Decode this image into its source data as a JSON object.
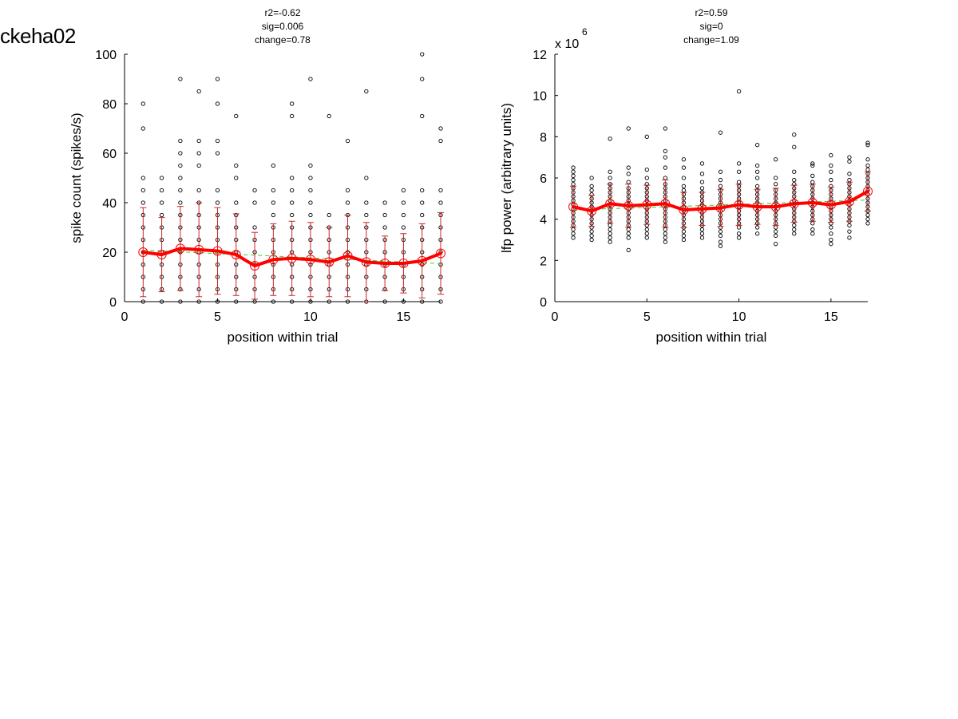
{
  "figure": {
    "title": "ckeha02"
  },
  "chart_data": [
    {
      "type": "scatter",
      "stats": [
        "r2=-0.62",
        "sig=0.006",
        "change=0.78"
      ],
      "xlabel": "position within trial",
      "ylabel": "spike count (spikes/s)",
      "xlim": [
        0,
        17
      ],
      "ylim": [
        0,
        100
      ],
      "xticks": [
        0,
        5,
        10,
        15
      ],
      "yticks": [
        0,
        20,
        40,
        60,
        80,
        100
      ],
      "tick_exponent": "",
      "colors": {
        "points": "#000000",
        "mean_line": "#ff0000",
        "errorbar": "#cc2222",
        "fit": "#33cc33"
      },
      "x": [
        1,
        2,
        3,
        4,
        5,
        6,
        7,
        8,
        9,
        10,
        11,
        12,
        13,
        14,
        15,
        16,
        17
      ],
      "mean": [
        20,
        19,
        21.5,
        21,
        20.5,
        19,
        14.5,
        17,
        17.5,
        17,
        16,
        18.5,
        16,
        15.5,
        15.5,
        16.5,
        19.5
      ],
      "std": [
        18,
        15,
        17,
        19,
        17.5,
        16.5,
        13.5,
        14.5,
        15,
        15,
        14,
        16.5,
        16,
        11,
        12,
        15,
        16.5
      ],
      "fit": [
        20.8,
        20.5,
        20.1,
        19.8,
        19.4,
        19.1,
        18.8,
        18.4,
        18.1,
        17.7,
        17.4,
        17.1,
        16.7,
        16.4,
        16,
        15.7,
        15.4
      ],
      "points": [
        [
          0,
          5,
          10,
          15,
          20,
          25,
          30,
          35,
          40,
          45,
          50,
          70,
          80
        ],
        [
          0,
          5,
          10,
          15,
          20,
          25,
          30,
          35,
          40,
          45,
          50
        ],
        [
          0,
          5,
          10,
          15,
          20,
          25,
          30,
          35,
          40,
          45,
          50,
          55,
          60,
          65,
          90
        ],
        [
          0,
          5,
          10,
          15,
          20,
          25,
          30,
          35,
          40,
          45,
          55,
          60,
          65,
          85
        ],
        [
          0,
          5,
          10,
          15,
          20,
          25,
          30,
          35,
          40,
          45,
          60,
          65,
          80,
          90
        ],
        [
          0,
          5,
          10,
          15,
          20,
          25,
          30,
          35,
          40,
          50,
          55,
          75
        ],
        [
          0,
          5,
          10,
          15,
          20,
          25,
          30,
          40,
          45
        ],
        [
          0,
          5,
          10,
          15,
          20,
          25,
          30,
          35,
          40,
          45,
          55
        ],
        [
          0,
          5,
          10,
          15,
          20,
          25,
          30,
          35,
          40,
          45,
          50,
          75,
          80
        ],
        [
          0,
          5,
          10,
          15,
          20,
          25,
          30,
          35,
          40,
          45,
          50,
          55,
          90
        ],
        [
          0,
          5,
          10,
          15,
          20,
          25,
          30,
          35,
          75
        ],
        [
          0,
          5,
          10,
          15,
          20,
          25,
          30,
          35,
          40,
          45,
          65
        ],
        [
          0,
          5,
          10,
          15,
          20,
          25,
          30,
          35,
          40,
          50,
          85
        ],
        [
          0,
          5,
          10,
          15,
          20,
          25,
          30,
          35,
          40
        ],
        [
          0,
          5,
          10,
          15,
          20,
          25,
          30,
          35,
          40,
          45
        ],
        [
          0,
          5,
          10,
          15,
          20,
          25,
          30,
          35,
          40,
          45,
          75,
          90,
          100
        ],
        [
          0,
          5,
          10,
          15,
          20,
          25,
          30,
          35,
          40,
          45,
          65,
          70
        ]
      ]
    },
    {
      "type": "scatter",
      "stats": [
        "r2=0.59",
        "sig=0",
        "change=1.09"
      ],
      "xlabel": "position within trial",
      "ylabel": "lfp power (arbitrary units)",
      "xlim": [
        0,
        17
      ],
      "ylim": [
        0,
        12
      ],
      "xticks": [
        0,
        5,
        10,
        15
      ],
      "yticks": [
        0,
        2,
        4,
        6,
        8,
        10,
        12
      ],
      "tick_exponent": "x 10",
      "tick_exponent_power": "6",
      "colors": {
        "points": "#000000",
        "mean_line": "#ff0000",
        "errorbar": "#cc2222",
        "fit": "#33cc33"
      },
      "x": [
        1,
        2,
        3,
        4,
        5,
        6,
        7,
        8,
        9,
        10,
        11,
        12,
        13,
        14,
        15,
        16,
        17
      ],
      "mean": [
        4.6,
        4.4,
        4.75,
        4.65,
        4.7,
        4.75,
        4.45,
        4.5,
        4.55,
        4.7,
        4.6,
        4.6,
        4.75,
        4.8,
        4.7,
        4.85,
        5.35
      ],
      "std": [
        1.0,
        0.75,
        0.95,
        1.05,
        0.95,
        1.15,
        0.85,
        0.8,
        0.9,
        1.0,
        0.85,
        0.9,
        0.9,
        0.9,
        0.85,
        0.95,
        0.95
      ],
      "fit": [
        4.45,
        4.48,
        4.51,
        4.54,
        4.57,
        4.6,
        4.63,
        4.66,
        4.69,
        4.72,
        4.75,
        4.78,
        4.81,
        4.84,
        4.87,
        4.9,
        4.93
      ],
      "points": [
        [
          3.1,
          3.3,
          3.5,
          3.7,
          3.9,
          4.1,
          4.3,
          4.5,
          4.7,
          4.9,
          5.1,
          5.3,
          5.5,
          5.7,
          5.9,
          6.1,
          6.3,
          6.5
        ],
        [
          3.0,
          3.2,
          3.4,
          3.6,
          3.8,
          4.0,
          4.2,
          4.4,
          4.6,
          4.8,
          5.0,
          5.2,
          5.4,
          5.6,
          6.0
        ],
        [
          2.9,
          3.1,
          3.3,
          3.5,
          3.7,
          3.9,
          4.1,
          4.3,
          4.5,
          4.7,
          4.9,
          5.1,
          5.3,
          5.5,
          5.7,
          6.0,
          6.3,
          7.9
        ],
        [
          2.5,
          3.1,
          3.3,
          3.5,
          3.7,
          3.9,
          4.1,
          4.3,
          4.5,
          4.7,
          4.9,
          5.1,
          5.3,
          5.5,
          5.8,
          6.2,
          6.5,
          8.4
        ],
        [
          3.1,
          3.3,
          3.5,
          3.7,
          3.9,
          4.1,
          4.3,
          4.5,
          4.7,
          4.9,
          5.1,
          5.3,
          5.5,
          5.7,
          6.0,
          6.4,
          8.0
        ],
        [
          2.9,
          3.1,
          3.3,
          3.5,
          3.7,
          3.9,
          4.1,
          4.3,
          4.5,
          4.7,
          4.9,
          5.1,
          5.3,
          5.5,
          5.7,
          6.0,
          6.5,
          7.0,
          7.3,
          8.4
        ],
        [
          3.0,
          3.2,
          3.4,
          3.6,
          3.8,
          4.0,
          4.2,
          4.4,
          4.6,
          4.8,
          5.0,
          5.2,
          5.4,
          5.6,
          6.0,
          6.5,
          6.9
        ],
        [
          3.1,
          3.3,
          3.5,
          3.7,
          3.9,
          4.1,
          4.3,
          4.5,
          4.7,
          4.9,
          5.1,
          5.3,
          5.5,
          5.8,
          6.2,
          6.7
        ],
        [
          2.7,
          2.9,
          3.2,
          3.4,
          3.6,
          3.8,
          4.0,
          4.2,
          4.4,
          4.6,
          4.8,
          5.0,
          5.2,
          5.4,
          5.6,
          5.9,
          6.3,
          8.2
        ],
        [
          3.1,
          3.3,
          3.6,
          3.8,
          4.0,
          4.2,
          4.4,
          4.6,
          4.8,
          5.0,
          5.2,
          5.4,
          5.6,
          5.8,
          6.3,
          6.7,
          10.2
        ],
        [
          3.3,
          3.6,
          3.8,
          4.0,
          4.2,
          4.4,
          4.6,
          4.8,
          5.0,
          5.2,
          5.4,
          5.6,
          6.0,
          6.3,
          6.6,
          7.6
        ],
        [
          2.8,
          3.2,
          3.4,
          3.6,
          3.8,
          4.0,
          4.2,
          4.4,
          4.6,
          4.8,
          5.0,
          5.2,
          5.4,
          5.7,
          6.0,
          6.9
        ],
        [
          3.3,
          3.5,
          3.7,
          3.9,
          4.1,
          4.3,
          4.5,
          4.7,
          4.9,
          5.1,
          5.3,
          5.5,
          5.7,
          5.9,
          6.3,
          7.5,
          8.1
        ],
        [
          3.3,
          3.5,
          3.8,
          4.0,
          4.2,
          4.4,
          4.6,
          4.8,
          5.0,
          5.2,
          5.4,
          5.6,
          5.8,
          6.1,
          6.6,
          6.7
        ],
        [
          2.8,
          3.0,
          3.3,
          3.6,
          3.8,
          4.0,
          4.2,
          4.4,
          4.6,
          4.8,
          5.0,
          5.2,
          5.4,
          5.6,
          5.9,
          6.3,
          6.6,
          7.1
        ],
        [
          3.1,
          3.4,
          3.7,
          3.9,
          4.1,
          4.3,
          4.5,
          4.7,
          4.9,
          5.1,
          5.3,
          5.5,
          5.7,
          5.9,
          6.2,
          6.8,
          7.0
        ],
        [
          3.8,
          4.0,
          4.2,
          4.4,
          4.6,
          4.8,
          5.0,
          5.2,
          5.4,
          5.6,
          5.8,
          6.0,
          6.2,
          6.4,
          6.6,
          6.9,
          7.6,
          7.7
        ]
      ]
    }
  ]
}
